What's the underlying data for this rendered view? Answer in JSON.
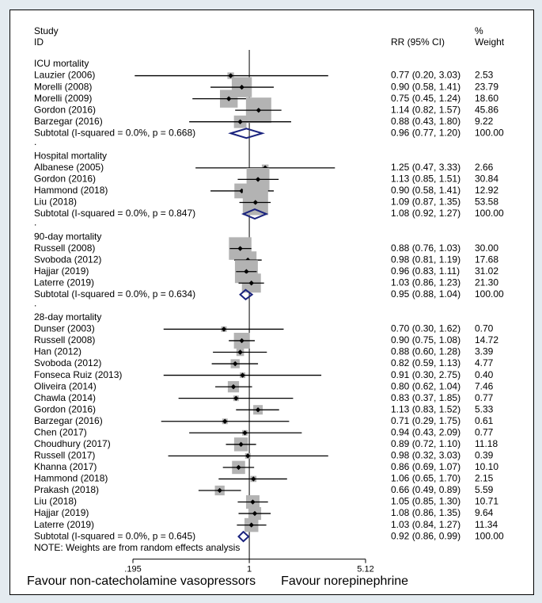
{
  "chart_data": {
    "type": "forest",
    "header": {
      "study": "Study",
      "id": "ID",
      "rr": "RR (95% CI)",
      "pct": "%",
      "weight": "Weight"
    },
    "groups": [
      {
        "name": "ICU mortality",
        "studies": [
          {
            "label": "Lauzier (2006)",
            "rr": 0.77,
            "lo": 0.2,
            "hi": 3.03,
            "ci_text": "0.77 (0.20, 3.03)",
            "weight": "2.53"
          },
          {
            "label": "Morelli (2008)",
            "rr": 0.9,
            "lo": 0.58,
            "hi": 1.41,
            "ci_text": "0.90 (0.58, 1.41)",
            "weight": "23.79"
          },
          {
            "label": "Morelli (2009)",
            "rr": 0.75,
            "lo": 0.45,
            "hi": 1.24,
            "ci_text": "0.75 (0.45, 1.24)",
            "weight": "18.60"
          },
          {
            "label": "Gordon (2016)",
            "rr": 1.14,
            "lo": 0.82,
            "hi": 1.57,
            "ci_text": "1.14 (0.82, 1.57)",
            "weight": "45.86"
          },
          {
            "label": "Barzegar (2016)",
            "rr": 0.88,
            "lo": 0.43,
            "hi": 1.8,
            "ci_text": "0.88 (0.43, 1.80)",
            "weight": "9.22"
          }
        ],
        "subtotal": {
          "label": "Subtotal  (I-squared = 0.0%, p = 0.668)",
          "rr": 0.96,
          "lo": 0.77,
          "hi": 1.2,
          "ci_text": "0.96 (0.77, 1.20)",
          "weight": "100.00"
        }
      },
      {
        "name": "Hospital mortality",
        "studies": [
          {
            "label": "Albanese (2005)",
            "rr": 1.25,
            "lo": 0.47,
            "hi": 3.33,
            "ci_text": "1.25 (0.47, 3.33)",
            "weight": "2.66"
          },
          {
            "label": "Gordon (2016)",
            "rr": 1.13,
            "lo": 0.85,
            "hi": 1.51,
            "ci_text": "1.13 (0.85, 1.51)",
            "weight": "30.84"
          },
          {
            "label": "Hammond (2018)",
            "rr": 0.9,
            "lo": 0.58,
            "hi": 1.41,
            "ci_text": "0.90 (0.58, 1.41)",
            "weight": "12.92"
          },
          {
            "label": "Liu  (2018)",
            "rr": 1.09,
            "lo": 0.87,
            "hi": 1.35,
            "ci_text": "1.09 (0.87, 1.35)",
            "weight": "53.58"
          }
        ],
        "subtotal": {
          "label": "Subtotal  (I-squared = 0.0%, p = 0.847)",
          "rr": 1.08,
          "lo": 0.92,
          "hi": 1.27,
          "ci_text": "1.08 (0.92, 1.27)",
          "weight": "100.00"
        }
      },
      {
        "name": "90-day mortality",
        "studies": [
          {
            "label": "Russell (2008)",
            "rr": 0.88,
            "lo": 0.76,
            "hi": 1.03,
            "ci_text": "0.88 (0.76, 1.03)",
            "weight": "30.00"
          },
          {
            "label": "Svoboda (2012)",
            "rr": 0.98,
            "lo": 0.81,
            "hi": 1.19,
            "ci_text": "0.98 (0.81, 1.19)",
            "weight": "17.68"
          },
          {
            "label": "Hajjar (2019)",
            "rr": 0.96,
            "lo": 0.83,
            "hi": 1.11,
            "ci_text": "0.96 (0.83, 1.11)",
            "weight": "31.02"
          },
          {
            "label": "Laterre (2019)",
            "rr": 1.03,
            "lo": 0.86,
            "hi": 1.23,
            "ci_text": "1.03 (0.86, 1.23)",
            "weight": "21.30"
          }
        ],
        "subtotal": {
          "label": "Subtotal  (I-squared = 0.0%, p = 0.634)",
          "rr": 0.95,
          "lo": 0.88,
          "hi": 1.04,
          "ci_text": "0.95 (0.88, 1.04)",
          "weight": "100.00"
        }
      },
      {
        "name": "28-day mortality",
        "studies": [
          {
            "label": "Dunser (2003)",
            "rr": 0.7,
            "lo": 0.3,
            "hi": 1.62,
            "ci_text": "0.70 (0.30, 1.62)",
            "weight": "0.70"
          },
          {
            "label": "Russell (2008)",
            "rr": 0.9,
            "lo": 0.75,
            "hi": 1.08,
            "ci_text": "0.90 (0.75, 1.08)",
            "weight": "14.72"
          },
          {
            "label": "Han (2012)",
            "rr": 0.88,
            "lo": 0.6,
            "hi": 1.28,
            "ci_text": "0.88 (0.60, 1.28)",
            "weight": "3.39"
          },
          {
            "label": "Svoboda (2012)",
            "rr": 0.82,
            "lo": 0.59,
            "hi": 1.13,
            "ci_text": "0.82 (0.59, 1.13)",
            "weight": "4.77"
          },
          {
            "label": "Fonseca Ruiz (2013)",
            "rr": 0.91,
            "lo": 0.3,
            "hi": 2.75,
            "ci_text": "0.91 (0.30, 2.75)",
            "weight": "0.40"
          },
          {
            "label": "Oliveira (2014)",
            "rr": 0.8,
            "lo": 0.62,
            "hi": 1.04,
            "ci_text": "0.80 (0.62, 1.04)",
            "weight": "7.46"
          },
          {
            "label": "Chawla (2014)",
            "rr": 0.83,
            "lo": 0.37,
            "hi": 1.85,
            "ci_text": "0.83 (0.37, 1.85)",
            "weight": "0.77"
          },
          {
            "label": "Gordon (2016)",
            "rr": 1.13,
            "lo": 0.83,
            "hi": 1.52,
            "ci_text": "1.13 (0.83, 1.52)",
            "weight": "5.33"
          },
          {
            "label": "Barzegar (2016)",
            "rr": 0.71,
            "lo": 0.29,
            "hi": 1.75,
            "ci_text": "0.71 (0.29, 1.75)",
            "weight": "0.61"
          },
          {
            "label": "Chen (2017)",
            "rr": 0.94,
            "lo": 0.43,
            "hi": 2.09,
            "ci_text": "0.94 (0.43, 2.09)",
            "weight": "0.77"
          },
          {
            "label": "Choudhury (2017)",
            "rr": 0.89,
            "lo": 0.72,
            "hi": 1.1,
            "ci_text": "0.89 (0.72, 1.10)",
            "weight": "11.18"
          },
          {
            "label": "Russell (2017)",
            "rr": 0.98,
            "lo": 0.32,
            "hi": 3.03,
            "ci_text": "0.98 (0.32, 3.03)",
            "weight": "0.39"
          },
          {
            "label": "Khanna (2017)",
            "rr": 0.86,
            "lo": 0.69,
            "hi": 1.07,
            "ci_text": "0.86 (0.69, 1.07)",
            "weight": "10.10"
          },
          {
            "label": "Hammond (2018)",
            "rr": 1.06,
            "lo": 0.65,
            "hi": 1.7,
            "ci_text": "1.06 (0.65, 1.70)",
            "weight": "2.15"
          },
          {
            "label": "Prakash (2018)",
            "rr": 0.66,
            "lo": 0.49,
            "hi": 0.89,
            "ci_text": "0.66 (0.49, 0.89)",
            "weight": "5.59"
          },
          {
            "label": "Liu (2018)",
            "rr": 1.05,
            "lo": 0.85,
            "hi": 1.3,
            "ci_text": "1.05 (0.85, 1.30)",
            "weight": "10.71"
          },
          {
            "label": "Hajjar (2019)",
            "rr": 1.08,
            "lo": 0.86,
            "hi": 1.35,
            "ci_text": "1.08 (0.86, 1.35)",
            "weight": "9.64"
          },
          {
            "label": "Laterre (2019)",
            "rr": 1.03,
            "lo": 0.84,
            "hi": 1.27,
            "ci_text": "1.03 (0.84, 1.27)",
            "weight": "11.34"
          }
        ],
        "subtotal": {
          "label": "Subtotal  (I-squared = 0.0%, p = 0.645)",
          "rr": 0.92,
          "lo": 0.86,
          "hi": 0.99,
          "ci_text": "0.92 (0.86, 0.99)",
          "weight": "100.00"
        }
      }
    ],
    "note": "NOTE: Weights are from random effects analysis",
    "separator": ".",
    "x_scale": "log",
    "x_range": [
      0.195,
      5.12
    ],
    "x_ticks": [
      {
        "value": 0.195,
        "label": ".195"
      },
      {
        "value": 1,
        "label": "1"
      },
      {
        "value": 5.12,
        "label": "5.12"
      }
    ],
    "favour_left": "Favour non-catecholamine vasopressors",
    "favour_right": "Favour norepinephrine",
    "colors": {
      "box": "#b3b3b3",
      "diamond": "#1a237e",
      "line": "#000000",
      "background": "#e4ebf0",
      "panel": "#ffffff"
    }
  }
}
